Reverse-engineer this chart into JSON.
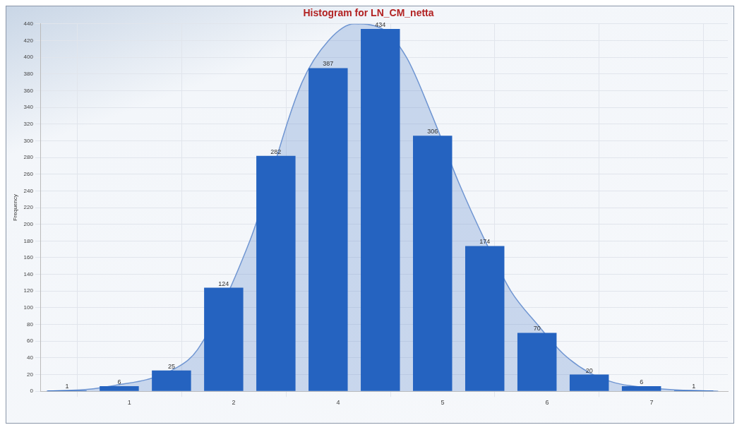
{
  "chart_data": {
    "type": "histogram",
    "title": "Histogram for LN_CM_netta",
    "ylabel": "Frequency",
    "bins": [
      -0.2,
      0.45,
      1.1,
      1.75,
      2.4,
      3.05,
      3.7,
      4.35,
      5.0,
      5.65,
      6.3,
      6.95,
      7.6,
      8.25
    ],
    "values": [
      1,
      6,
      25,
      124,
      282,
      387,
      434,
      306,
      174,
      70,
      20,
      6,
      1
    ],
    "color": "#2563c0",
    "series": [
      {
        "type": "area",
        "color": "#7096d2",
        "x": [
          -0.13,
          0.45,
          0.78,
          1.12,
          1.43,
          1.75,
          2.4,
          3.05,
          3.38,
          3.7,
          4.03,
          4.35,
          4.67,
          5.0,
          5.33,
          5.65,
          5.98,
          6.3,
          6.63,
          6.95,
          7.28,
          7.63,
          8.23
        ],
        "values": [
          0,
          3,
          8,
          14,
          25,
          50,
          180,
          370,
          420,
          440,
          435,
          400,
          330,
          250,
          180,
          120,
          80,
          45,
          22,
          10,
          5,
          2,
          0
        ]
      }
    ],
    "value_labels": [
      "1",
      "6",
      "25",
      "124",
      "282",
      "387",
      "434",
      "306",
      "174",
      "70",
      "20",
      "6",
      "1"
    ],
    "xlim": [
      -0.2,
      8.35
    ],
    "xticks": [
      {
        "value": 0.9,
        "label": "1"
      },
      {
        "value": 2.2,
        "label": "2"
      },
      {
        "value": 3.5,
        "label": "4"
      },
      {
        "value": 4.8,
        "label": "5"
      },
      {
        "value": 6.1,
        "label": "6"
      },
      {
        "value": 7.4,
        "label": "7"
      }
    ],
    "ylim": [
      0,
      440
    ],
    "yticks": [
      0,
      20,
      40,
      60,
      80,
      100,
      120,
      140,
      160,
      180,
      200,
      220,
      240,
      260,
      280,
      300,
      320,
      340,
      360,
      380,
      400,
      420,
      440
    ],
    "grid": true
  }
}
